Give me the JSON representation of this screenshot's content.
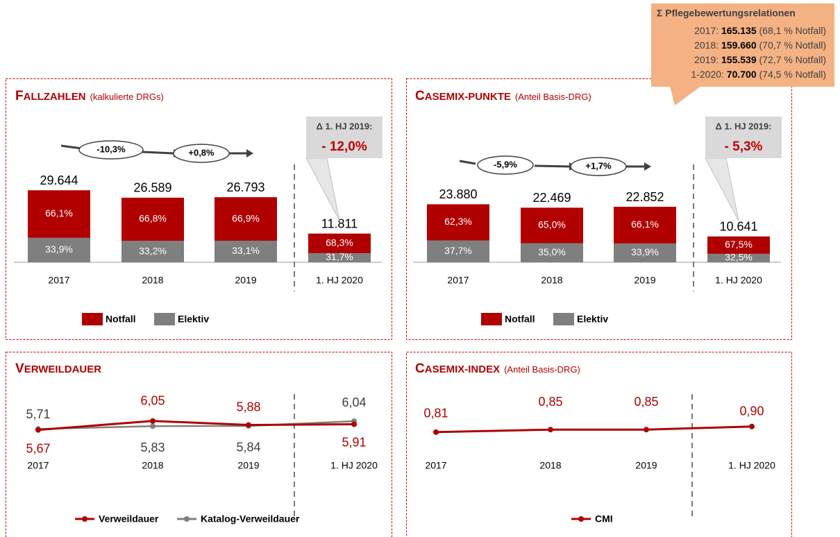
{
  "chart_data": [
    {
      "type": "bar",
      "title": "FALLZAHLEN",
      "subtitle": "(kalkulierte DRGs)",
      "categories": [
        "2017",
        "2018",
        "2019",
        "1. HJ 2020"
      ],
      "totals": [
        29644,
        26589,
        26793,
        11811
      ],
      "total_labels": [
        "29.644",
        "26.589",
        "26.793",
        "11.811"
      ],
      "series": [
        {
          "name": "Notfall",
          "color": "#b00000",
          "values": [
            66.1,
            66.8,
            66.9,
            68.3
          ],
          "value_labels": [
            "66,1%",
            "66,8%",
            "66,9%",
            "68,3%"
          ]
        },
        {
          "name": "Elektiv",
          "color": "#7f7f7f",
          "values": [
            33.9,
            33.2,
            33.1,
            31.7
          ],
          "value_labels": [
            "33,9%",
            "33,2%",
            "33,1%",
            "31,7%"
          ]
        }
      ],
      "annotations": [
        "-10,3%",
        "+0,8%"
      ],
      "delta_label": "Δ 1. HJ 2019:",
      "delta_value": "- 12,0%"
    },
    {
      "type": "bar",
      "title": "CASEMIX-PUNKTE",
      "subtitle": "(Anteil Basis-DRG)",
      "categories": [
        "2017",
        "2018",
        "2019",
        "1. HJ 2020"
      ],
      "totals": [
        23880,
        22469,
        22852,
        10641
      ],
      "total_labels": [
        "23.880",
        "22.469",
        "22.852",
        "10.641"
      ],
      "series": [
        {
          "name": "Notfall",
          "color": "#b00000",
          "values": [
            62.3,
            65.0,
            66.1,
            67.5
          ],
          "value_labels": [
            "62,3%",
            "65,0%",
            "66,1%",
            "67,5%"
          ]
        },
        {
          "name": "Elektiv",
          "color": "#7f7f7f",
          "values": [
            37.7,
            35.0,
            33.9,
            32.5
          ],
          "value_labels": [
            "37,7%",
            "35,0%",
            "33,9%",
            "32,5%"
          ]
        }
      ],
      "annotations": [
        "-5,9%",
        "+1,7%"
      ],
      "delta_label": "Δ 1. HJ 2019:",
      "delta_value": "- 5,3%",
      "callout_box": {
        "title": "Σ Pflegebewertungsrelationen",
        "rows": [
          {
            "label": "2017:",
            "value": "165.135",
            "share": "(68,1 % Notfall)"
          },
          {
            "label": "2018:",
            "value": "159.660",
            "share": "(70,7 % Notfall)"
          },
          {
            "label": "2019:",
            "value": "155.539",
            "share": "(72,7 % Notfall)"
          },
          {
            "label": "1-2020:",
            "value": "70.700",
            "share": "(74,5 % Notfall)"
          }
        ]
      }
    },
    {
      "type": "line",
      "title": "VERWEILDAUER",
      "categories": [
        "2017",
        "2018",
        "2019",
        "1. HJ 2020"
      ],
      "series": [
        {
          "name": "Verweildauer",
          "color": "#b00000",
          "values": [
            5.67,
            6.05,
            5.88,
            5.91
          ],
          "value_labels": [
            "5,67",
            "6,05",
            "5,88",
            "5,91"
          ]
        },
        {
          "name": "Katalog-Verweildauer",
          "color": "#7f7f7f",
          "values": [
            5.71,
            5.83,
            5.84,
            6.04
          ],
          "value_labels": [
            "5,71",
            "5,83",
            "5,84",
            "6,04"
          ]
        }
      ]
    },
    {
      "type": "line",
      "title": "CASEMIX-INDEX",
      "subtitle": "(Anteil Basis-DRG)",
      "categories": [
        "2017",
        "2018",
        "2019",
        "1. HJ 2020"
      ],
      "series": [
        {
          "name": "CMI",
          "color": "#b00000",
          "values": [
            0.81,
            0.85,
            0.85,
            0.9
          ],
          "value_labels": [
            "0,81",
            "0,85",
            "0,85",
            "0,90"
          ]
        }
      ]
    }
  ]
}
